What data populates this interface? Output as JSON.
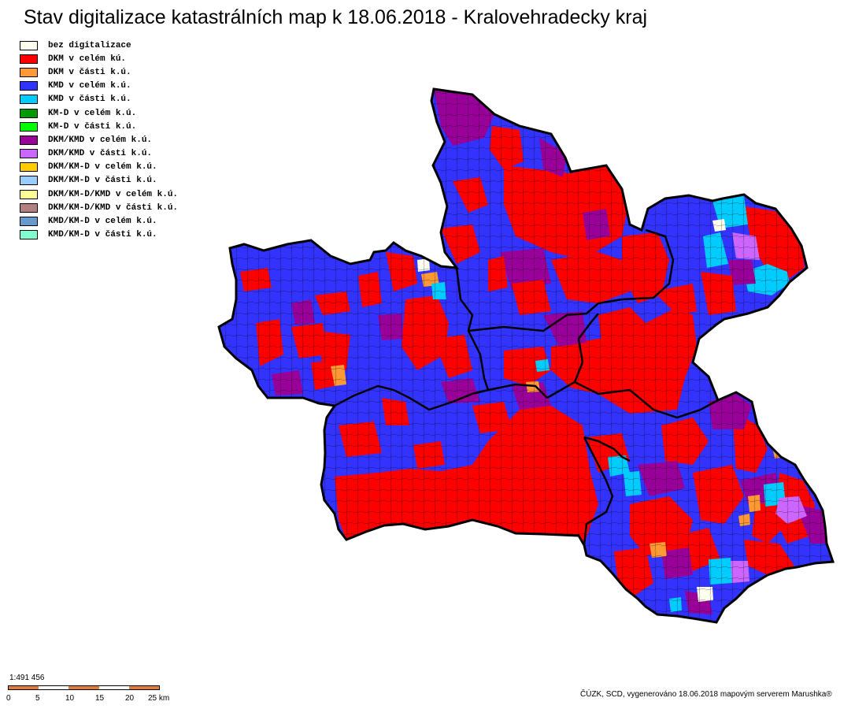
{
  "title": "Stav digitalizace katastrálních map k 18.06.2018 - Kralovehradecky kraj",
  "legend": [
    {
      "label": "bez digitalizace",
      "color": "#fffff0"
    },
    {
      "label": "DKM v celém kú.",
      "color": "#ff0000"
    },
    {
      "label": "DKM v části k.ú.",
      "color": "#ff9933"
    },
    {
      "label": "KMD v celém k.ú.",
      "color": "#3333ff"
    },
    {
      "label": "KMD v části k.ú.",
      "color": "#00ccff"
    },
    {
      "label": "KM-D v celém k.ú.",
      "color": "#009900"
    },
    {
      "label": "KM-D v části k.ú.",
      "color": "#00ff00"
    },
    {
      "label": "DKM/KMD v celém k.ú.",
      "color": "#990099"
    },
    {
      "label": "DKM/KMD v části k.ú.",
      "color": "#cc66ff"
    },
    {
      "label": "DKM/KM-D v celém k.ú.",
      "color": "#ffcc00"
    },
    {
      "label": "DKM/KM-D v části k.ú.",
      "color": "#99ccff"
    },
    {
      "label": "DKM/KM-D/KMD v celém k.ú.",
      "color": "#ffff99"
    },
    {
      "label": "DKM/KM-D/KMD v části k.ú.",
      "color": "#b38080"
    },
    {
      "label": "KMD/KM-D v celém k.ú.",
      "color": "#6699cc"
    },
    {
      "label": "KMD/KM-D v části k.ú.",
      "color": "#80ffd0"
    }
  ],
  "scale": {
    "ratio": "1:491 456",
    "ticks": [
      "0",
      "5",
      "10",
      "15",
      "20",
      "25 km"
    ]
  },
  "credit": "ČÚZK, SCD, vygenerováno 18.06.2018 mapovým serverem Marushka®"
}
